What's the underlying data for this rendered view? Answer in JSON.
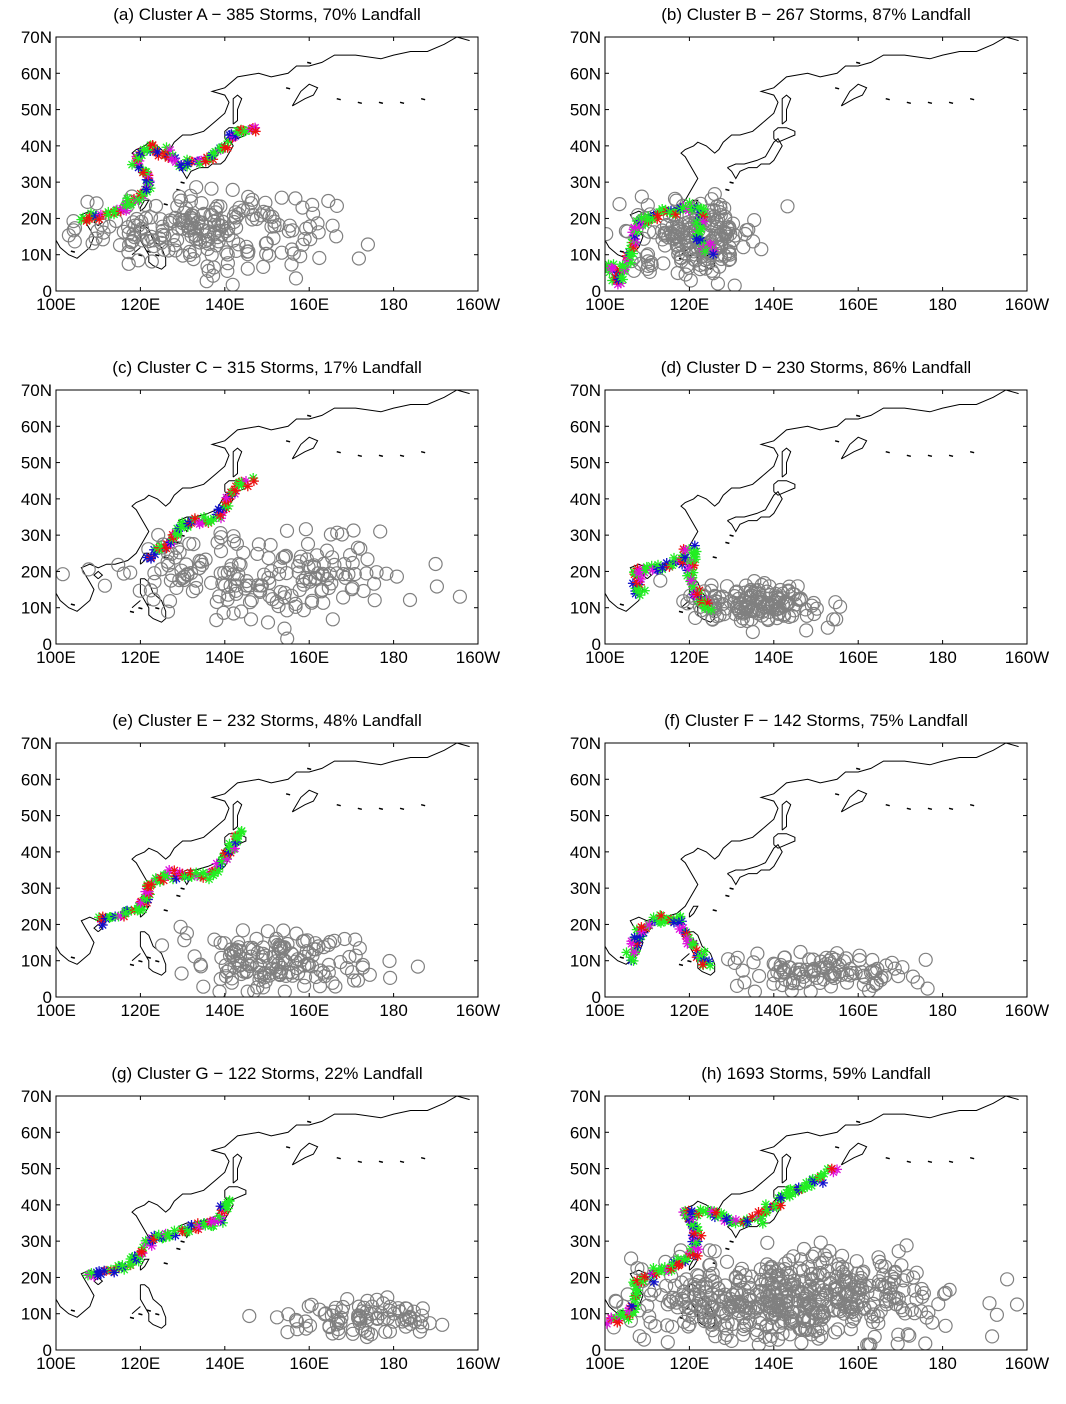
{
  "figure": {
    "marker_colors": {
      "genesis": "#808080",
      "landfall_green": "#22ee22",
      "landfall_blue": "#1010cc",
      "landfall_red": "#ee1111",
      "landfall_magenta": "#dd11dd",
      "coastline": "#000000"
    },
    "x_ticks": [
      "100E",
      "120E",
      "140E",
      "160E",
      "180",
      "160W"
    ],
    "y_ticks": [
      "0",
      "10N",
      "20N",
      "30N",
      "40N",
      "50N",
      "60N",
      "70N"
    ]
  },
  "chart_data": [
    {
      "type": "scatter",
      "title": "(a) Cluster A − 385 Storms, 70% Landfall",
      "xlim": [
        100,
        200
      ],
      "ylim": [
        0,
        70
      ],
      "genesis": {
        "lon": [
          135,
          15
        ],
        "lat": [
          17,
          5
        ],
        "count": 220
      },
      "landfall_route": [
        [
          106,
          20
        ],
        [
          112,
          21
        ],
        [
          118,
          24
        ],
        [
          121,
          27
        ],
        [
          122,
          32
        ],
        [
          119,
          36
        ],
        [
          122,
          40
        ],
        [
          126,
          38
        ],
        [
          130,
          35
        ],
        [
          136,
          36
        ],
        [
          140,
          40
        ],
        [
          144,
          44
        ],
        [
          148,
          45
        ]
      ]
    },
    {
      "type": "scatter",
      "title": "(b) Cluster B − 267 Storms, 87% Landfall",
      "xlim": [
        100,
        200
      ],
      "ylim": [
        0,
        70
      ],
      "genesis": {
        "lon": [
          122,
          7
        ],
        "lat": [
          15,
          5
        ],
        "count": 200
      },
      "landfall_route": [
        [
          101,
          8
        ],
        [
          103,
          2
        ],
        [
          106,
          10
        ],
        [
          108,
          19
        ],
        [
          112,
          21
        ],
        [
          116,
          22
        ],
        [
          120,
          23
        ],
        [
          123,
          22
        ],
        [
          122,
          15
        ],
        [
          124,
          12
        ],
        [
          126,
          10
        ]
      ]
    },
    {
      "type": "scatter",
      "title": "(c) Cluster C − 315 Storms, 17% Landfall",
      "xlim": [
        100,
        200
      ],
      "ylim": [
        0,
        70
      ],
      "genesis": {
        "lon": [
          150,
          18
        ],
        "lat": [
          19,
          6
        ],
        "count": 190
      },
      "landfall_route": [
        [
          122,
          24
        ],
        [
          127,
          28
        ],
        [
          130,
          33
        ],
        [
          134,
          34
        ],
        [
          138,
          35
        ],
        [
          141,
          40
        ],
        [
          143,
          44
        ],
        [
          147,
          45
        ]
      ]
    },
    {
      "type": "scatter",
      "title": "(d) Cluster D − 230 Storms, 86% Landfall",
      "xlim": [
        100,
        200
      ],
      "ylim": [
        0,
        70
      ],
      "genesis": {
        "lon": [
          136,
          8
        ],
        "lat": [
          11,
          3
        ],
        "count": 160
      },
      "landfall_route": [
        [
          108,
          13
        ],
        [
          107,
          20
        ],
        [
          112,
          21
        ],
        [
          117,
          23
        ],
        [
          121,
          26
        ],
        [
          120,
          20
        ],
        [
          121,
          14
        ],
        [
          123,
          12
        ],
        [
          125,
          9
        ]
      ]
    },
    {
      "type": "scatter",
      "title": "(e) Cluster E − 232 Storms, 48% Landfall",
      "xlim": [
        100,
        200
      ],
      "ylim": [
        0,
        70
      ],
      "genesis": {
        "lon": [
          152,
          10
        ],
        "lat": [
          10,
          4
        ],
        "count": 160
      },
      "landfall_route": [
        [
          110,
          21
        ],
        [
          116,
          23
        ],
        [
          121,
          25
        ],
        [
          122,
          31
        ],
        [
          127,
          34
        ],
        [
          132,
          33
        ],
        [
          138,
          35
        ],
        [
          141,
          40
        ],
        [
          144,
          46
        ]
      ]
    },
    {
      "type": "scatter",
      "title": "(f) Cluster F − 142 Storms, 75% Landfall",
      "xlim": [
        100,
        200
      ],
      "ylim": [
        0,
        70
      ],
      "genesis": {
        "lon": [
          153,
          10
        ],
        "lat": [
          7,
          3
        ],
        "count": 110
      },
      "landfall_route": [
        [
          106,
          10
        ],
        [
          108,
          18
        ],
        [
          112,
          21
        ],
        [
          117,
          22
        ],
        [
          120,
          16
        ],
        [
          122,
          12
        ],
        [
          125,
          8
        ]
      ]
    },
    {
      "type": "scatter",
      "title": "(g) Cluster G − 122 Storms, 22% Landfall",
      "xlim": [
        100,
        200
      ],
      "ylim": [
        0,
        70
      ],
      "genesis": {
        "lon": [
          174,
          10
        ],
        "lat": [
          9,
          3
        ],
        "count": 90
      },
      "landfall_route": [
        [
          108,
          21
        ],
        [
          114,
          22
        ],
        [
          119,
          25
        ],
        [
          122,
          30
        ],
        [
          128,
          32
        ],
        [
          133,
          34
        ],
        [
          138,
          35
        ],
        [
          141,
          42
        ]
      ]
    },
    {
      "type": "scatter",
      "title": "(h) 1693 Storms, 59% Landfall",
      "xlim": [
        100,
        200
      ],
      "ylim": [
        0,
        70
      ],
      "genesis": {
        "lon": [
          143,
          18
        ],
        "lat": [
          14,
          6
        ],
        "count": 520
      },
      "landfall_route": [
        [
          101,
          8
        ],
        [
          106,
          10
        ],
        [
          108,
          19
        ],
        [
          112,
          21
        ],
        [
          118,
          24
        ],
        [
          121,
          27
        ],
        [
          122,
          32
        ],
        [
          119,
          38
        ],
        [
          126,
          38
        ],
        [
          130,
          35
        ],
        [
          136,
          36
        ],
        [
          140,
          40
        ],
        [
          144,
          44
        ],
        [
          148,
          45
        ],
        [
          154,
          50
        ]
      ]
    }
  ]
}
